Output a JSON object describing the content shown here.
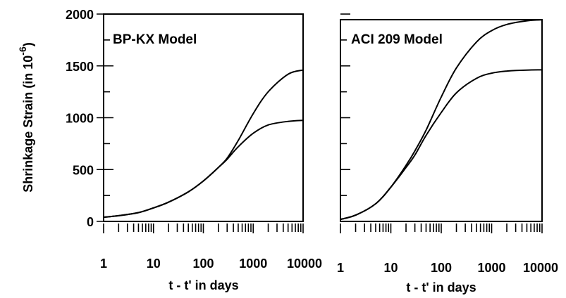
{
  "chart_data": [
    {
      "type": "line",
      "panel_label": "BP-KX Model",
      "xlabel": "t - t' in days",
      "ylabel": "Shrinkage Strain (in 10^-6)",
      "ylabel_main": "Shrinkage Strain (in 10",
      "ylabel_exp": "-6",
      "ylabel_close": ")",
      "x_scale": "log",
      "xlim": [
        1,
        10000
      ],
      "ylim": [
        0,
        2000
      ],
      "x_tick_labels": [
        "1",
        "10",
        "100",
        "1000",
        "10000"
      ],
      "y_tick_labels": [
        "0",
        "500",
        "1000",
        "1500",
        "2000"
      ],
      "series": [
        {
          "x": [
            1,
            2,
            5,
            10,
            20,
            50,
            100,
            200,
            300,
            500,
            1000,
            2000,
            5000,
            10000
          ],
          "y": [
            40,
            55,
            85,
            130,
            185,
            285,
            390,
            520,
            610,
            780,
            1040,
            1250,
            1420,
            1460
          ]
        },
        {
          "x": [
            1,
            2,
            5,
            10,
            20,
            50,
            100,
            200,
            300,
            500,
            1000,
            2000,
            5000,
            10000
          ],
          "y": [
            40,
            55,
            85,
            130,
            185,
            285,
            390,
            520,
            600,
            720,
            850,
            930,
            965,
            975
          ]
        }
      ]
    },
    {
      "type": "line",
      "panel_label": "ACI 209 Model",
      "xlabel": "t - t' in days",
      "x_scale": "log",
      "xlim": [
        1,
        10000
      ],
      "ylim": [
        0,
        2000
      ],
      "x_tick_labels": [
        "1",
        "10",
        "100",
        "1000",
        "10000"
      ],
      "series": [
        {
          "x": [
            1,
            2,
            5,
            10,
            20,
            30,
            50,
            100,
            200,
            500,
            1000,
            2000,
            5000,
            10000
          ],
          "y": [
            20,
            60,
            170,
            330,
            540,
            680,
            880,
            1200,
            1480,
            1730,
            1840,
            1900,
            1935,
            1945
          ]
        },
        {
          "x": [
            1,
            2,
            5,
            10,
            20,
            30,
            50,
            100,
            200,
            500,
            1000,
            2000,
            5000,
            10000
          ],
          "y": [
            20,
            60,
            170,
            330,
            520,
            640,
            830,
            1050,
            1240,
            1380,
            1430,
            1450,
            1460,
            1462
          ]
        }
      ]
    }
  ]
}
